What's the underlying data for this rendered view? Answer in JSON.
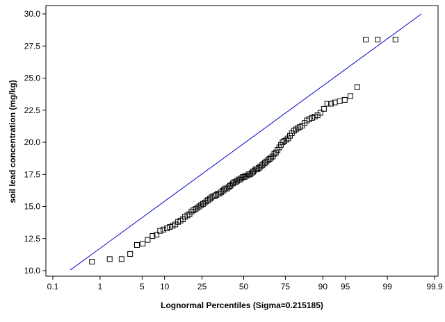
{
  "chart_data": {
    "type": "scatter",
    "title": "",
    "xlabel": "Lognormal Percentiles (Sigma=0.215185)",
    "ylabel": "soil lead concentration (mg/kg)",
    "x_scale": "lognormal-probability",
    "x_ticks": [
      "0.1",
      "1",
      "5",
      "10",
      "25",
      "50",
      "75",
      "90",
      "95",
      "99",
      "99.9"
    ],
    "x_tick_values": [
      0.1,
      1,
      5,
      10,
      25,
      50,
      75,
      90,
      95,
      99,
      99.9
    ],
    "xlim": [
      0.1,
      99.9
    ],
    "y_ticks": [
      "10.0",
      "12.5",
      "15.0",
      "17.5",
      "20.0",
      "22.5",
      "25.0",
      "27.5",
      "30.0"
    ],
    "y_tick_values": [
      10.0,
      12.5,
      15.0,
      17.5,
      20.0,
      22.5,
      25.0,
      27.5,
      30.0
    ],
    "ylim": [
      9.7,
      30.2
    ],
    "grid": false,
    "legend": "none",
    "colors": {
      "marker": "#000000",
      "fit_line": "#0000cc",
      "axis": "#000000"
    },
    "fit_line": {
      "x": [
        0.25,
        99.8
      ],
      "y": [
        10.05,
        30.0
      ]
    },
    "points": {
      "x": [
        0.7,
        1.5,
        2.4,
        3.3,
        4.2,
        5.1,
        6.0,
        7.0,
        7.9,
        8.8,
        9.7,
        10.7,
        11.6,
        12.5,
        13.4,
        14.4,
        15.3,
        16.2,
        17.1,
        18.1,
        19.0,
        19.9,
        20.8,
        21.8,
        22.7,
        23.6,
        24.5,
        25.5,
        26.4,
        27.3,
        28.2,
        29.2,
        30.1,
        31.0,
        31.9,
        32.9,
        33.8,
        34.7,
        35.6,
        36.6,
        37.5,
        38.4,
        39.4,
        40.3,
        41.2,
        42.1,
        43.1,
        44.0,
        44.9,
        45.8,
        46.8,
        47.7,
        48.6,
        49.5,
        50.5,
        51.4,
        52.3,
        53.2,
        54.2,
        55.1,
        56.0,
        56.9,
        57.9,
        58.8,
        59.7,
        60.6,
        61.6,
        62.5,
        63.4,
        64.4,
        65.3,
        66.2,
        67.1,
        68.1,
        69.0,
        69.9,
        70.8,
        71.8,
        72.7,
        73.6,
        74.5,
        75.5,
        76.4,
        77.3,
        78.2,
        79.2,
        80.1,
        81.0,
        81.9,
        82.9,
        83.8,
        84.7,
        85.6,
        86.6,
        87.5,
        88.4,
        89.3,
        90.3,
        91.2,
        92.1,
        93.0,
        94.0,
        94.9,
        95.8,
        96.7,
        97.6,
        98.5,
        99.3
      ],
      "y": [
        10.7,
        10.9,
        10.9,
        11.3,
        12.0,
        12.1,
        12.4,
        12.7,
        12.8,
        13.1,
        13.2,
        13.3,
        13.4,
        13.5,
        13.6,
        13.8,
        13.9,
        14.0,
        14.2,
        14.3,
        14.4,
        14.6,
        14.7,
        14.8,
        14.9,
        15.0,
        15.1,
        15.2,
        15.3,
        15.4,
        15.5,
        15.6,
        15.7,
        15.8,
        15.8,
        15.9,
        16.0,
        16.0,
        16.1,
        16.2,
        16.3,
        16.4,
        16.4,
        16.5,
        16.6,
        16.7,
        16.8,
        16.9,
        16.9,
        17.0,
        17.1,
        17.1,
        17.2,
        17.3,
        17.3,
        17.4,
        17.4,
        17.5,
        17.5,
        17.6,
        17.7,
        17.8,
        17.9,
        17.9,
        18.0,
        18.1,
        18.2,
        18.3,
        18.4,
        18.5,
        18.6,
        18.7,
        18.8,
        18.9,
        19.1,
        19.2,
        19.4,
        19.6,
        19.8,
        20.0,
        20.1,
        20.2,
        20.3,
        20.5,
        20.7,
        20.9,
        21.0,
        21.1,
        21.2,
        21.3,
        21.5,
        21.7,
        21.8,
        21.9,
        22.0,
        22.1,
        22.3,
        22.6,
        23.0,
        23.0,
        23.1,
        23.2,
        23.3,
        23.6,
        24.3,
        28.0,
        28.0,
        28.0
      ]
    }
  }
}
